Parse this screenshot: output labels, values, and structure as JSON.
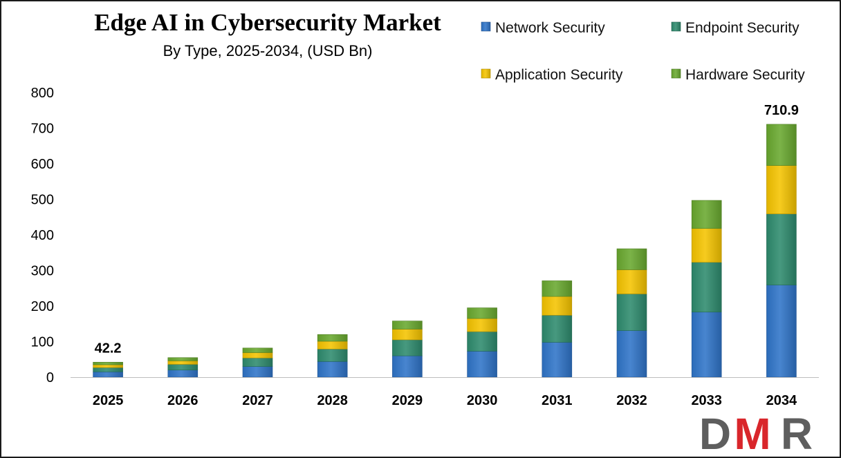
{
  "chart_data": {
    "type": "bar",
    "stacked": true,
    "title": "Edge AI in Cybersecurity Market",
    "subtitle": "By Type, 2025-2034, (USD Bn)",
    "xlabel": "",
    "ylabel": "",
    "ylim": [
      0,
      800
    ],
    "yticks": [
      0,
      100,
      200,
      300,
      400,
      500,
      600,
      700,
      800
    ],
    "grid": false,
    "legend_position": "top-right",
    "categories": [
      "2025",
      "2026",
      "2027",
      "2028",
      "2029",
      "2030",
      "2031",
      "2032",
      "2033",
      "2034"
    ],
    "series": [
      {
        "name": "Network Security",
        "color": "#2F74C8",
        "values": [
          15.0,
          20.0,
          30.0,
          44.0,
          60.0,
          73.0,
          98.0,
          131.0,
          183.0,
          259.0
        ]
      },
      {
        "name": "Endpoint Security",
        "color": "#2E8B6E",
        "values": [
          12.0,
          16.0,
          24.0,
          35.0,
          45.0,
          55.0,
          76.0,
          103.0,
          140.0,
          200.0
        ]
      },
      {
        "name": "Application Security",
        "color": "#F5C400",
        "values": [
          8.0,
          10.0,
          15.0,
          22.0,
          30.0,
          37.0,
          53.0,
          68.0,
          95.0,
          136.0
        ]
      },
      {
        "name": "Hardware Security",
        "color": "#69A92F",
        "values": [
          7.2,
          9.0,
          13.0,
          19.0,
          23.0,
          30.0,
          44.0,
          59.0,
          79.0,
          115.9
        ]
      }
    ],
    "annotations": [
      {
        "category": "2025",
        "text": "42.2"
      },
      {
        "category": "2034",
        "text": "710.9"
      }
    ]
  },
  "logo": {
    "text": "DMR",
    "colors": [
      "#5E5E5E",
      "#D9262B",
      "#5E5E5E"
    ]
  }
}
